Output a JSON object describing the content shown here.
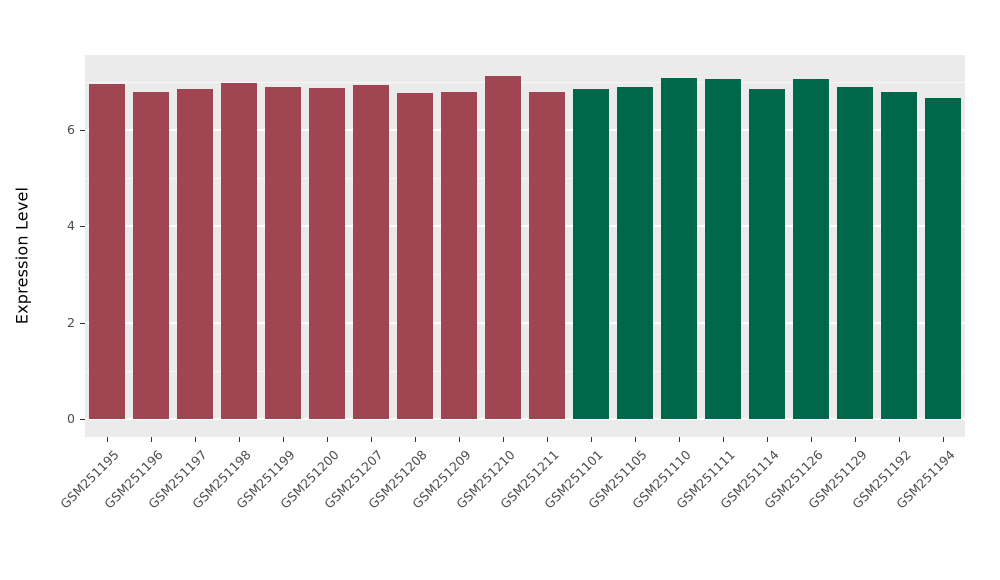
{
  "chart_data": {
    "type": "bar",
    "title": "",
    "xlabel": "",
    "ylabel": "Expression Level",
    "ylim": [
      0,
      7.55
    ],
    "yticks": [
      0,
      2,
      4,
      6
    ],
    "grid": true,
    "legend_position": "none",
    "panel_background": "#EBEBEB",
    "gridline_color": "#FFFFFF",
    "tick_label_color": "#4D4D4D",
    "categories": [
      "GSM251195",
      "GSM251196",
      "GSM251197",
      "GSM251198",
      "GSM251199",
      "GSM251200",
      "GSM251207",
      "GSM251208",
      "GSM251209",
      "GSM251210",
      "GSM251211",
      "GSM251101",
      "GSM251105",
      "GSM251110",
      "GSM251111",
      "GSM251114",
      "GSM251126",
      "GSM251129",
      "GSM251192",
      "GSM251194"
    ],
    "values": [
      6.95,
      6.79,
      6.85,
      6.97,
      6.89,
      6.87,
      6.93,
      6.77,
      6.79,
      7.11,
      6.79,
      6.85,
      6.89,
      7.07,
      7.05,
      6.85,
      7.05,
      6.89,
      6.79,
      6.65
    ],
    "groups": [
      {
        "name": "group-red",
        "color": "#A04552",
        "count": 11
      },
      {
        "name": "group-green",
        "color": "#00684A",
        "count": 9
      }
    ]
  }
}
